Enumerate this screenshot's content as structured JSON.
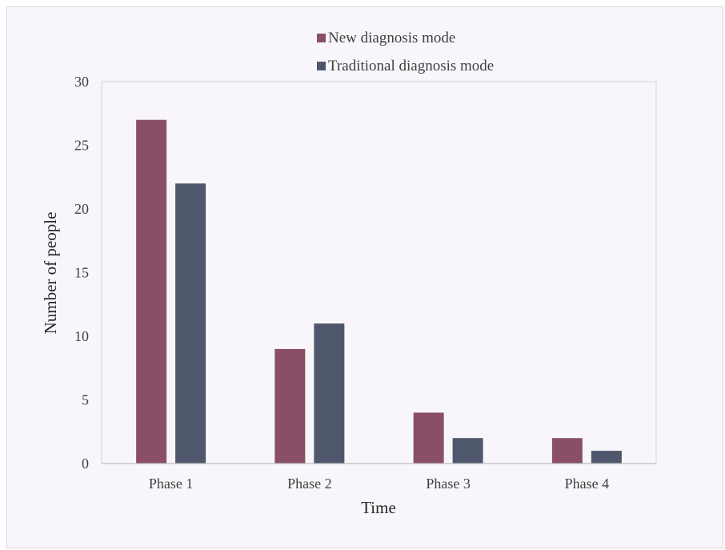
{
  "chart_data": {
    "type": "bar",
    "categories": [
      "Phase 1",
      "Phase 2",
      "Phase 3",
      "Phase 4"
    ],
    "series": [
      {
        "name": "New diagnosis mode",
        "values": [
          27,
          9,
          4,
          2
        ],
        "color": "#8a4f66"
      },
      {
        "name": "Traditional diagnosis mode",
        "values": [
          22,
          11,
          2,
          1
        ],
        "color": "#4e576b"
      }
    ],
    "xlabel": "Time",
    "ylabel": "Number of people",
    "ylim": [
      0,
      30
    ],
    "yticks": [
      0,
      5,
      10,
      15,
      20,
      25,
      30
    ],
    "grid": false,
    "legend_position": "top"
  }
}
